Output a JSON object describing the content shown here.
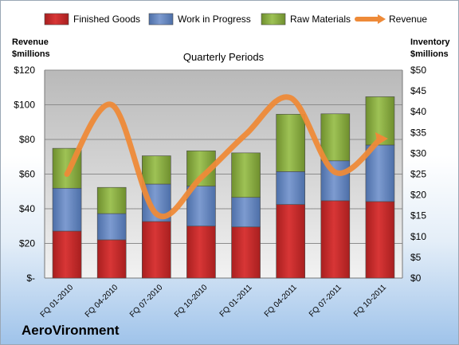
{
  "chart_data": {
    "type": "bar",
    "title": "Quarterly Periods",
    "left_axis_label_line1": "Revenue",
    "left_axis_label_line2": "$millions",
    "right_axis_label_line1": "Inventory",
    "right_axis_label_line2": "$millions",
    "categories": [
      "FQ 01-2010",
      "FQ 04-2010",
      "FQ 07-2010",
      "FQ 10-2010",
      "FQ 01-2011",
      "FQ 04-2011",
      "FQ 07-2011",
      "FQ 10-2011"
    ],
    "left_ticks": [
      "$-",
      "$20",
      "$40",
      "$60",
      "$80",
      "$100",
      "$120"
    ],
    "right_ticks": [
      "$0",
      "$5",
      "$10",
      "$15",
      "$20",
      "$25",
      "$30",
      "$35",
      "$40",
      "$45",
      "$50"
    ],
    "ylim_left": [
      0,
      120
    ],
    "ylim_right": [
      0,
      50
    ],
    "series": [
      {
        "name": "Finished Goods",
        "axis": "right",
        "values": [
          11.3,
          9.2,
          13.6,
          12.5,
          12.3,
          17.7,
          18.6,
          18.4
        ],
        "color": "#cc2b2b"
      },
      {
        "name": "Work in Progress",
        "axis": "right",
        "values": [
          10.3,
          6.3,
          9.0,
          9.6,
          7.1,
          7.9,
          9.6,
          13.6
        ],
        "color": "#6f8fc6"
      },
      {
        "name": "Raw Materials",
        "axis": "right",
        "values": [
          9.6,
          6.3,
          6.8,
          8.5,
          10.7,
          13.8,
          11.3,
          11.6
        ],
        "color": "#93b548"
      },
      {
        "name": "Revenue",
        "axis": "left",
        "type": "line",
        "values": [
          60,
          100,
          37,
          58,
          83,
          104,
          61,
          80
        ],
        "color": "#ee8a38"
      }
    ],
    "legend_position": "top",
    "grid": true
  },
  "brand": "AeroVironment"
}
